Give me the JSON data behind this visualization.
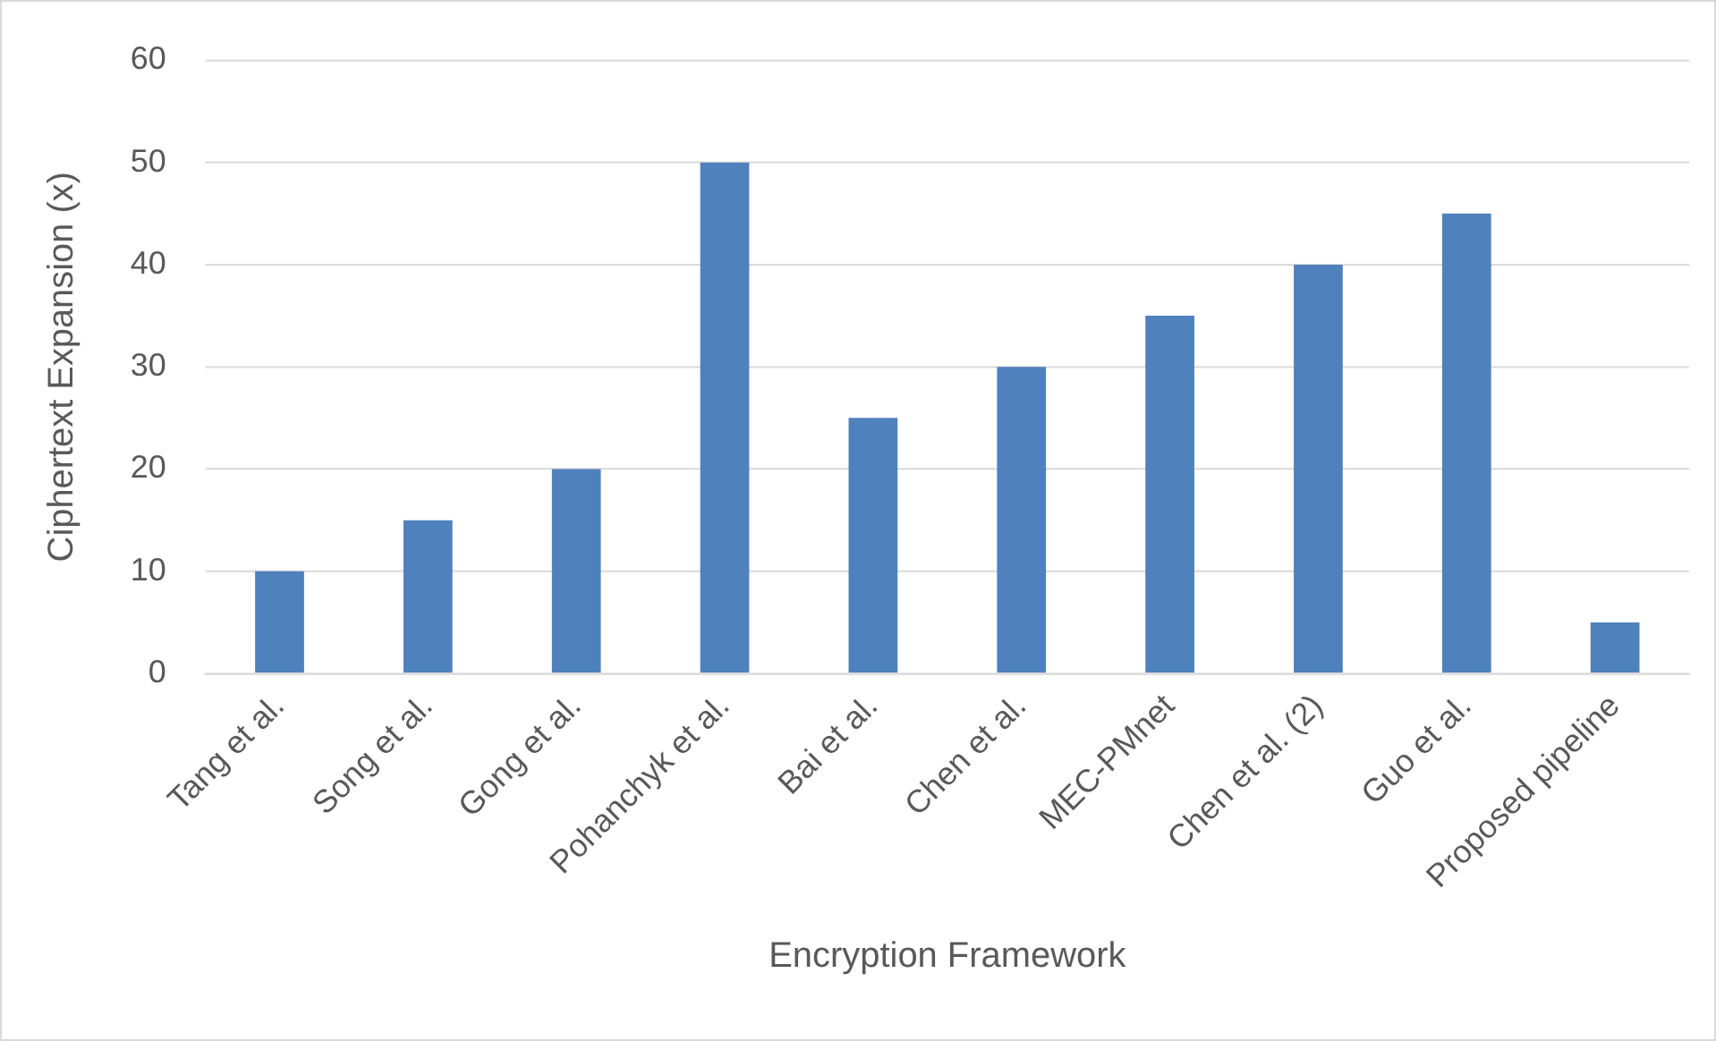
{
  "chart_data": {
    "type": "bar",
    "xlabel": "Encryption Framework",
    "ylabel": "Ciphertext Expansion (x)",
    "categories": [
      "Tang et al.",
      "Song et al.",
      "Gong et al.",
      "Pohanchyk et al.",
      "Bai et al.",
      "Chen et al.",
      "MEC-PMnet",
      "Chen et al. (2)",
      "Guo et al.",
      "Proposed pipeline"
    ],
    "values": [
      10,
      15,
      20,
      50,
      25,
      30,
      35,
      40,
      45,
      5
    ],
    "color": "#4f81bd",
    "ylim": [
      0,
      60
    ],
    "yticks": [
      0,
      10,
      20,
      30,
      40,
      50,
      60
    ],
    "grid": "y",
    "legend": false
  }
}
